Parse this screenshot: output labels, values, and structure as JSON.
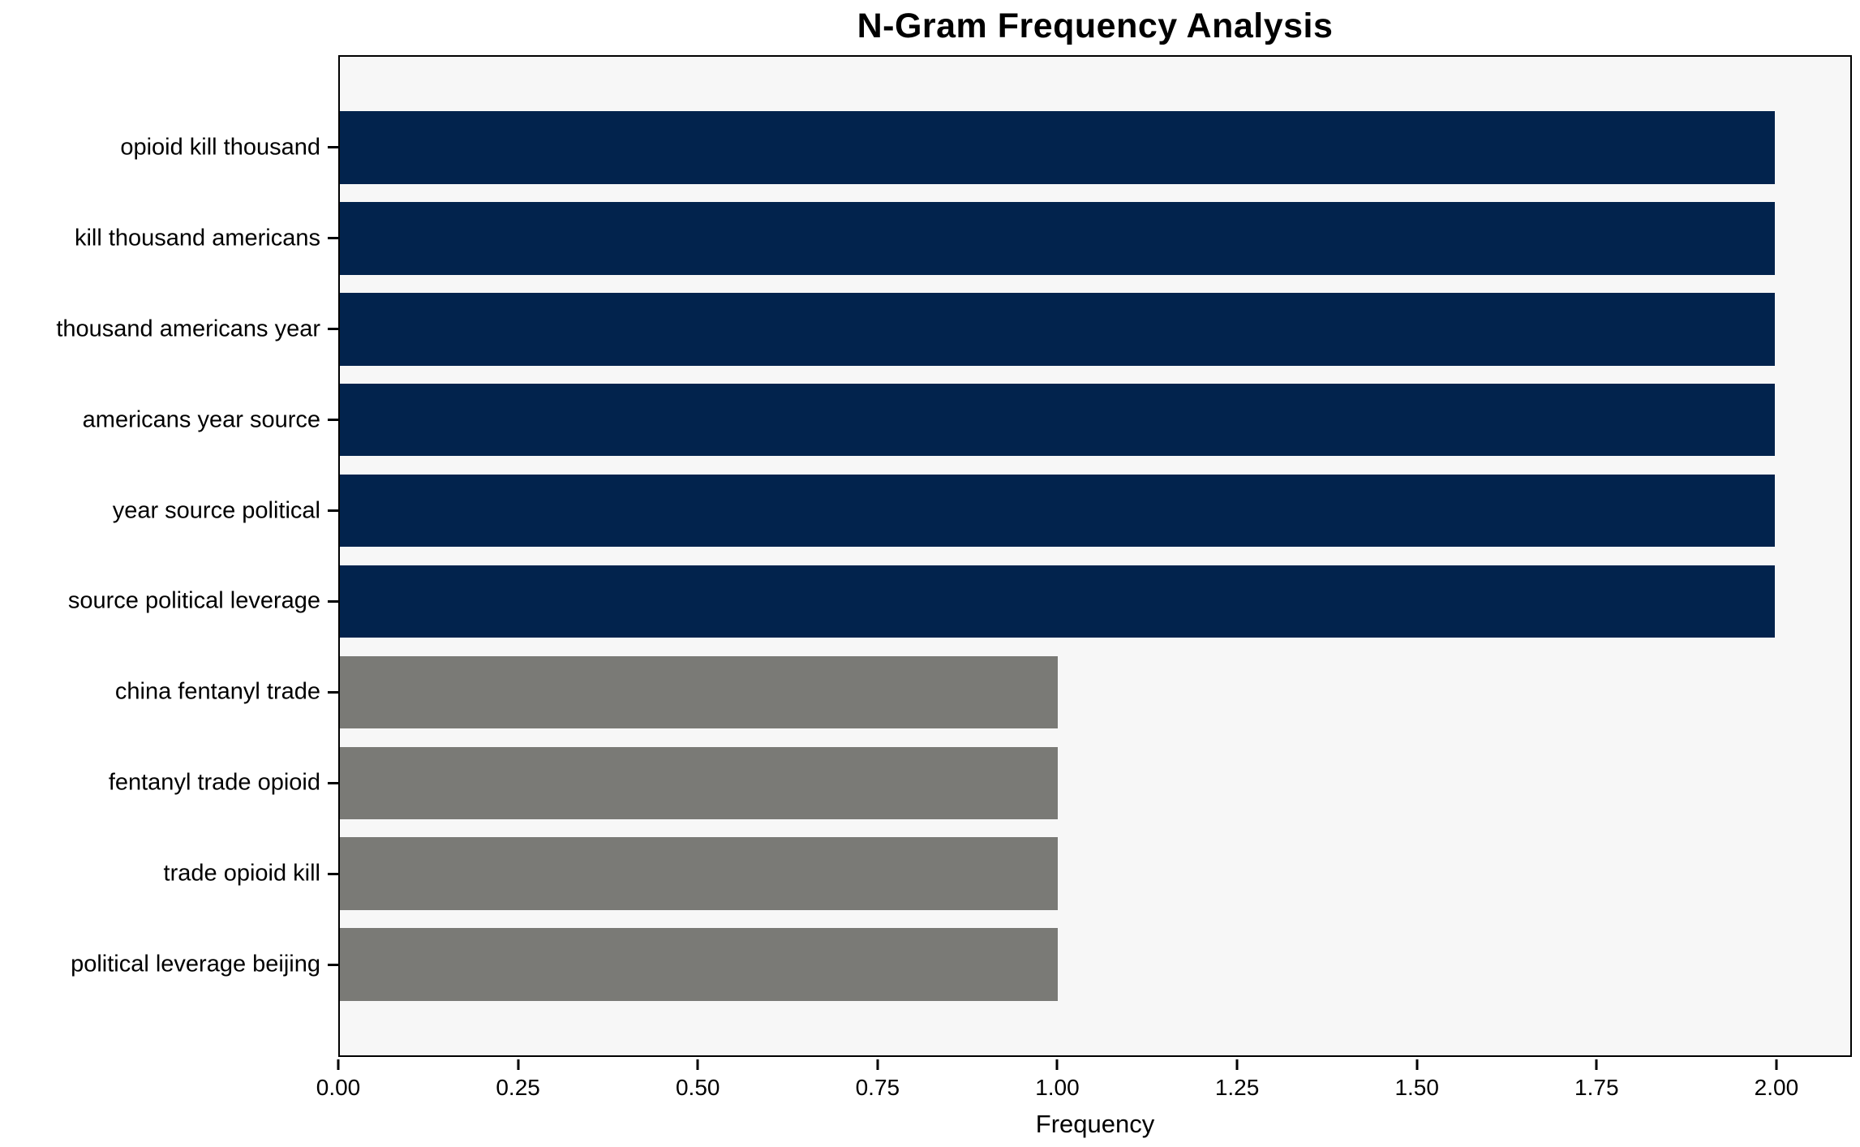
{
  "chart_data": {
    "type": "bar",
    "orientation": "horizontal",
    "title": "N-Gram Frequency Analysis",
    "xlabel": "Frequency",
    "ylabel": "",
    "categories": [
      "opioid kill thousand",
      "kill thousand americans",
      "thousand americans year",
      "americans year source",
      "year source political",
      "source political leverage",
      "china fentanyl trade",
      "fentanyl trade opioid",
      "trade opioid kill",
      "political leverage beijing"
    ],
    "values": [
      2,
      2,
      2,
      2,
      2,
      2,
      1,
      1,
      1,
      1
    ],
    "bar_colors": [
      "#02234d",
      "#02234d",
      "#02234d",
      "#02234d",
      "#02234d",
      "#02234d",
      "#7a7a76",
      "#7a7a76",
      "#7a7a76",
      "#7a7a76"
    ],
    "xlim": [
      0,
      2.105
    ],
    "xtick_values": [
      0.0,
      0.25,
      0.5,
      0.75,
      1.0,
      1.25,
      1.5,
      1.75,
      2.0
    ],
    "xtick_labels": [
      "0.00",
      "0.25",
      "0.50",
      "0.75",
      "1.00",
      "1.25",
      "1.50",
      "1.75",
      "2.00"
    ],
    "grid": false,
    "legend": false,
    "plot_background": "#f7f7f7",
    "figure_background": "#ffffff",
    "frame_color": "#000000"
  }
}
